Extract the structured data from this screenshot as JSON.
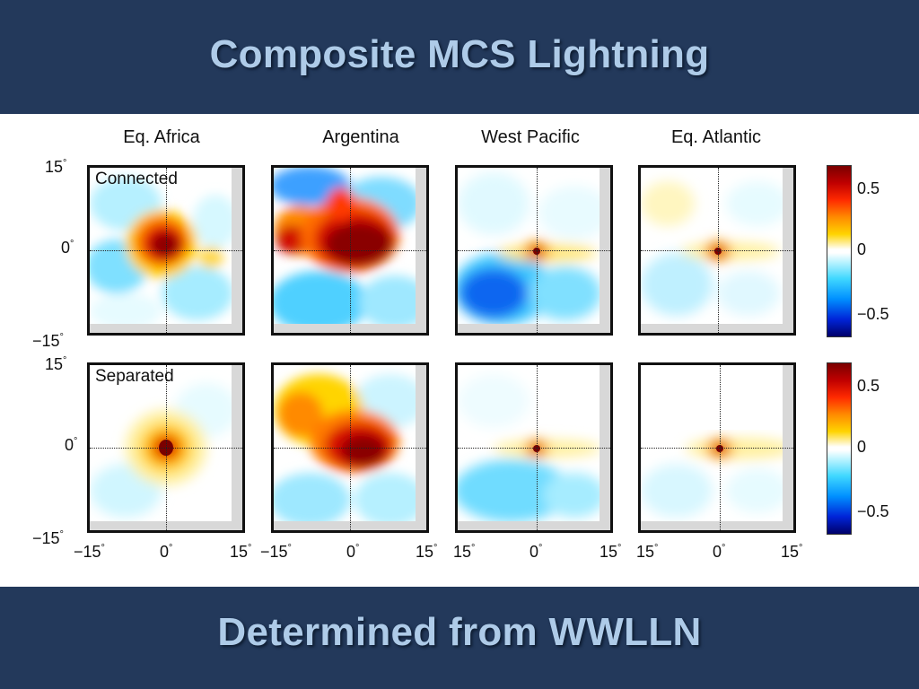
{
  "slide": {
    "title": "Composite MCS Lightning",
    "footer": "Determined from WWLLN"
  },
  "columns": [
    "Eq. Africa",
    "Argentina",
    "West Pacific",
    "Eq. Atlantic"
  ],
  "rows": [
    "Connected",
    "Separated"
  ],
  "axes": {
    "y_ticks": [
      "15",
      "0",
      "−15"
    ],
    "x_ticks_first": [
      "−15",
      "0",
      "15"
    ],
    "x_ticks_second": [
      "−15",
      "0",
      "15"
    ],
    "x_ticks_third": [
      "15",
      "0",
      "15"
    ],
    "x_ticks_fourth": [
      "15",
      "0",
      "15"
    ],
    "degree": "°"
  },
  "colorbar": {
    "ticks": [
      "0.5",
      "0",
      "−0.5"
    ],
    "colors": [
      "#7a0000",
      "#ff2a00",
      "#ffd400",
      "#ffffff",
      "#40d8ff",
      "#0024d8",
      "#00006a"
    ]
  }
}
